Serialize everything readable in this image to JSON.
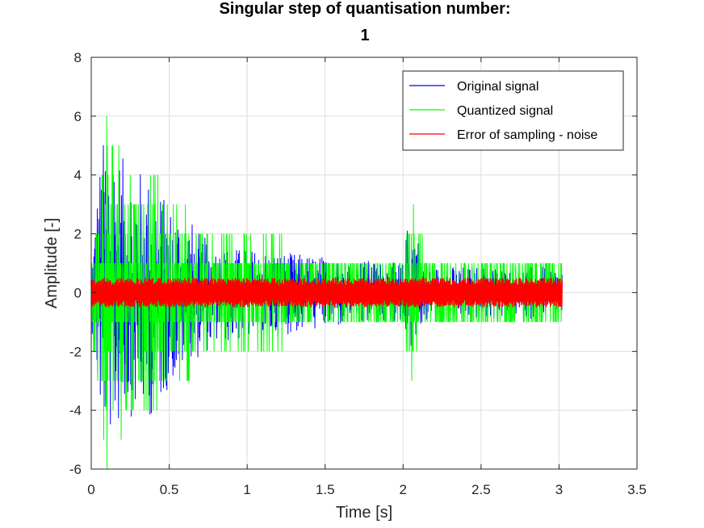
{
  "chart_data": {
    "type": "line",
    "title": [
      "Singular step of quantisation number:",
      "1"
    ],
    "xlabel": "Time [s]",
    "ylabel": "Amplitude [-]",
    "xlim": [
      0,
      3.5
    ],
    "ylim": [
      -6,
      8
    ],
    "xticks": [
      0,
      0.5,
      1,
      1.5,
      2,
      2.5,
      3,
      3.5
    ],
    "xtick_labels": [
      "0",
      "0.5",
      "1",
      "1.5",
      "2",
      "2.5",
      "3",
      "3.5"
    ],
    "yticks": [
      -6,
      -4,
      -2,
      0,
      2,
      4,
      6,
      8
    ],
    "ytick_labels": [
      "-6",
      "-4",
      "-2",
      "0",
      "2",
      "4",
      "6",
      "8"
    ],
    "grid": true,
    "legend_position": "top-right",
    "series": [
      {
        "name": "Original signal",
        "color": "#0000ff",
        "description": "dense audio waveform",
        "envelope": {
          "t": [
            0,
            0.05,
            0.1,
            0.15,
            0.2,
            0.3,
            0.4,
            0.5,
            0.6,
            0.7,
            0.8,
            1.0,
            1.2,
            1.4,
            1.6,
            1.8,
            2.0,
            2.05,
            2.1,
            2.15,
            2.2,
            2.5,
            2.8,
            3.0
          ],
          "max": [
            1.0,
            4.3,
            6.0,
            5.3,
            4.6,
            4.3,
            3.8,
            3.0,
            2.8,
            2.0,
            1.6,
            1.5,
            1.4,
            1.3,
            1.2,
            1.1,
            1.0,
            3.4,
            2.2,
            1.0,
            0.9,
            0.9,
            0.9,
            0.9
          ],
          "min": [
            -1.0,
            -4.2,
            -5.0,
            -4.8,
            -4.4,
            -4.1,
            -4.3,
            -3.2,
            -2.6,
            -2.2,
            -1.8,
            -1.6,
            -1.5,
            -1.3,
            -1.2,
            -1.1,
            -1.0,
            -1.9,
            -1.5,
            -1.0,
            -0.9,
            -0.9,
            -0.9,
            -0.9
          ]
        }
      },
      {
        "name": "Quantized signal",
        "color": "#00ff00",
        "description": "original signal rounded to integer steps",
        "envelope": {
          "t": [
            0,
            0.05,
            0.1,
            0.15,
            0.2,
            0.3,
            0.4,
            0.5,
            0.6,
            0.7,
            0.8,
            1.0,
            1.2,
            1.4,
            1.6,
            1.8,
            2.0,
            2.05,
            2.1,
            2.15,
            2.2,
            2.5,
            2.8,
            3.0
          ],
          "max": [
            1,
            4,
            7,
            6,
            5,
            4,
            4,
            3,
            3,
            2,
            2,
            2,
            2,
            1,
            1,
            1,
            1,
            3,
            2,
            1,
            1,
            1,
            1,
            1
          ],
          "min": [
            -1,
            -4,
            -6,
            -5,
            -5,
            -4,
            -5,
            -3,
            -3,
            -2,
            -2,
            -2,
            -2,
            -1,
            -1,
            -1,
            -1,
            -3,
            -2,
            -1,
            -1,
            -1,
            -1,
            -1
          ]
        }
      },
      {
        "name": "Error of sampling - noise",
        "color": "#ff0000",
        "description": "quantization error bounded by +/-0.5",
        "envelope": {
          "t": [
            0,
            3.0
          ],
          "max": [
            0.5,
            0.5
          ],
          "min": [
            -0.5,
            -0.5
          ]
        }
      }
    ],
    "t_end": 3.02
  }
}
